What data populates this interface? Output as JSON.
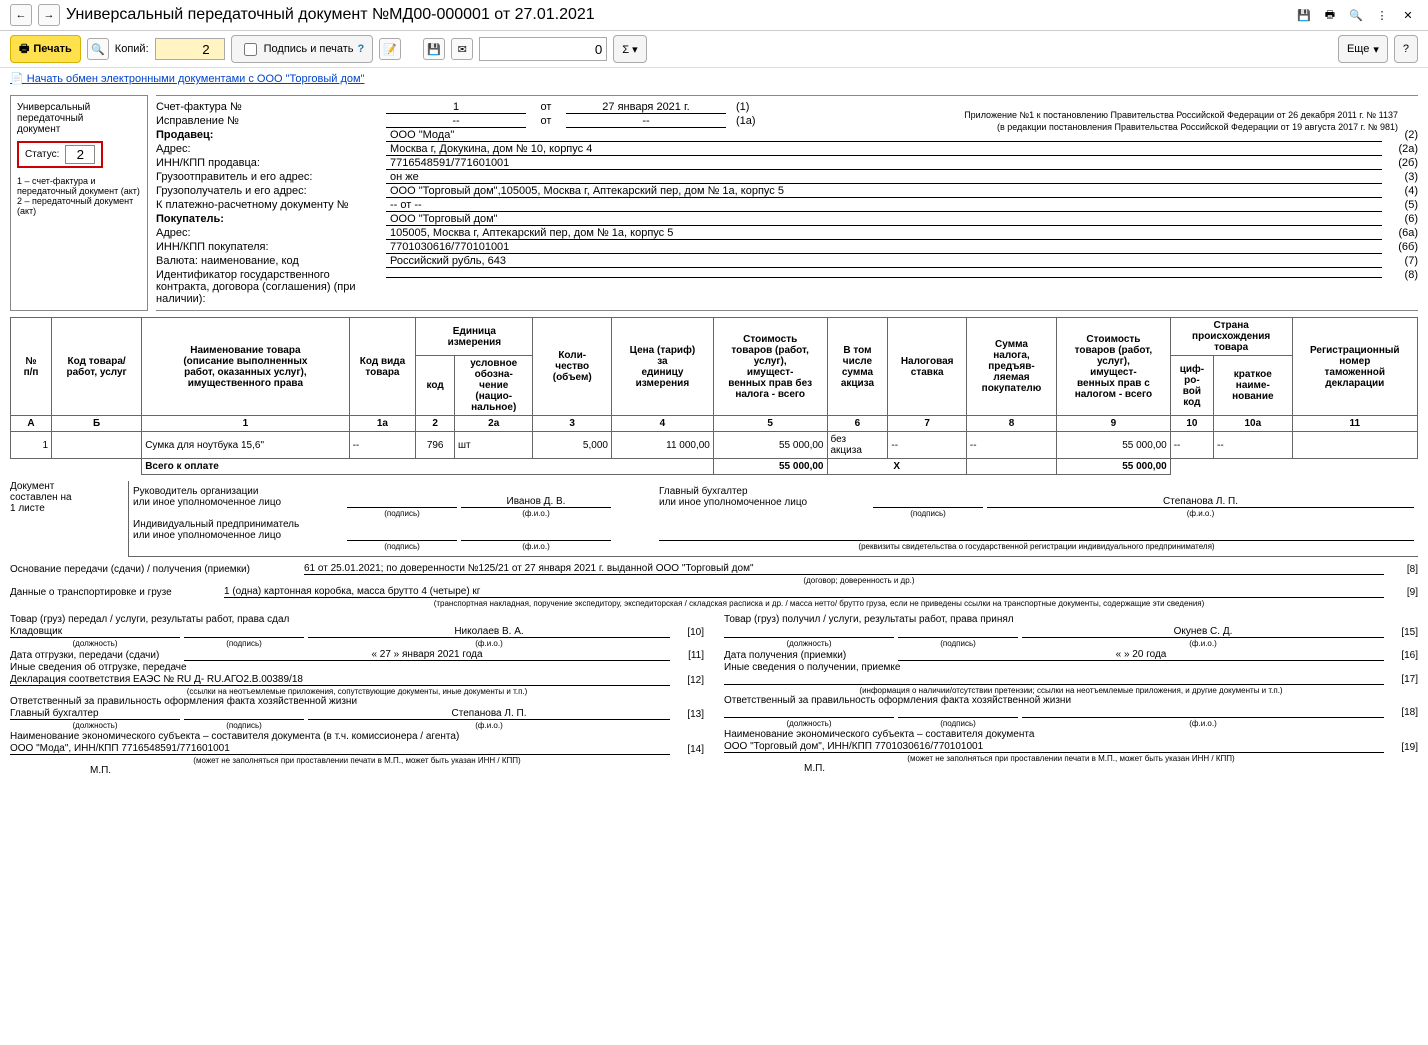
{
  "chrome": {
    "title": "Универсальный передаточный документ №МД00-000001 от 27.01.2021"
  },
  "toolbar": {
    "print": "Печать",
    "copies_label": "Копий:",
    "copies_value": "2",
    "sign_print": "Подпись и печать",
    "number_field": "0",
    "more": "Еще"
  },
  "link": "Начать обмен электронными документами с ООО \"Торговый дом\"",
  "sidebar": {
    "title1": "Универсальный",
    "title2": "передаточный",
    "title3": "документ",
    "status_label": "Статус:",
    "status_value": "2",
    "note": "1 – счет-фактура и передаточный документ (акт)\n2 – передаточный документ (акт)"
  },
  "legal": {
    "l1": "Приложение №1 к постановлению Правительства Российской Федерации от 26 декабря 2011 г. № 1137",
    "l2": "(в редакции постановления Правительства Российской Федерации от 19 августа 2017 г. № 981)"
  },
  "header": {
    "invoice_no_label": "Счет-фактура №",
    "invoice_no": "1",
    "from_label": "от",
    "invoice_date": "27 января 2021 г.",
    "invoice_idx": "(1)",
    "corr_label": "Исправление №",
    "corr_no": "--",
    "corr_date": "--",
    "corr_idx": "(1а)",
    "rows": [
      {
        "label": "Продавец:",
        "val": "ООО \"Мода\"",
        "idx": "(2)",
        "bold": true
      },
      {
        "label": "Адрес:",
        "val": "Москва г, Докукина, дом № 10, корпус 4",
        "idx": "(2а)"
      },
      {
        "label": "ИНН/КПП продавца:",
        "val": "7716548591/771601001",
        "idx": "(2б)"
      },
      {
        "label": "Грузоотправитель и его адрес:",
        "val": "он же",
        "idx": "(3)"
      },
      {
        "label": "Грузополучатель и его адрес:",
        "val": "ООО \"Торговый дом\",105005, Москва г, Аптекарский пер, дом № 1а, корпус 5",
        "idx": "(4)"
      },
      {
        "label": "К платежно-расчетному документу №",
        "val": "-- от --",
        "idx": "(5)"
      },
      {
        "label": "Покупатель:",
        "val": "ООО \"Торговый дом\"",
        "idx": "(6)",
        "bold": true
      },
      {
        "label": "Адрес:",
        "val": "105005, Москва г, Аптекарский пер, дом № 1а, корпус 5",
        "idx": "(6а)"
      },
      {
        "label": "ИНН/КПП покупателя:",
        "val": "7701030616/770101001",
        "idx": "(6б)"
      },
      {
        "label": "Валюта: наименование, код",
        "val": "Российский рубль, 643",
        "idx": "(7)"
      },
      {
        "label": "Идентификатор государственного контракта, договора (соглашения) (при наличии):",
        "val": "",
        "idx": "(8)"
      }
    ]
  },
  "table": {
    "head": {
      "n": "№\nп/п",
      "code": "Код товара/\nработ, услуг",
      "name": "Наименование товара\n(описание выполненных\nработ, оказанных услуг),\nимущественного права",
      "kind": "Код вида\nтовара",
      "unit": "Единица\nизмерения",
      "unit_code": "код",
      "unit_name": "условное\nобозна-\nчение\n(нацио-\nнальное)",
      "qty": "Коли-\nчество\n(объем)",
      "price": "Цена (тариф)\nза\nединицу\nизмерения",
      "cost_notax": "Стоимость\nтоваров (работ,\nуслуг),\nимущест-\nвенных прав без\nналога - всего",
      "excise": "В том\nчисле\nсумма\nакциза",
      "taxrate": "Налоговая\nставка",
      "taxsum": "Сумма\nналога,\nпредъяв-\nляемая\nпокупателю",
      "cost_tax": "Стоимость\nтоваров (работ,\nуслуг),\nимущест-\nвенных прав с\nналогом - всего",
      "country": "Страна\nпроисхождения\nтовара",
      "country_code": "циф-\nро-\nвой\nкод",
      "country_name": "краткое\nнаиме-\nнование",
      "decl": "Регистрационный\nномер\nтаможенной\nдекларации"
    },
    "col_ids": [
      "А",
      "Б",
      "1",
      "1а",
      "2",
      "2а",
      "3",
      "4",
      "5",
      "6",
      "7",
      "8",
      "9",
      "10",
      "10а",
      "11"
    ],
    "rows": [
      {
        "n": "1",
        "code": "",
        "name": "Сумка для ноутбука 15,6\"",
        "kind": "--",
        "unit_code": "796",
        "unit_name": "шт",
        "qty": "5,000",
        "price": "11 000,00",
        "cost_notax": "55 000,00",
        "excise": "без\nакциза",
        "taxrate": "--",
        "taxsum": "--",
        "cost_tax": "55 000,00",
        "cc": "--",
        "cn": "--",
        "decl": ""
      }
    ],
    "total_label": "Всего к оплате",
    "total_notax": "55 000,00",
    "total_x": "Х",
    "total_tax": "55 000,00"
  },
  "footer": {
    "doc_on": "Документ\nсоставлен на\n1 листе",
    "mgr_label": "Руководитель организации\nили иное уполномоченное лицо",
    "mgr_name": "Иванов Д. В.",
    "acc_label": "Главный бухгалтер\nили иное уполномоченное лицо",
    "acc_name": "Степанова Л. П.",
    "ip_label": "Индивидуальный предприниматель\nили иное уполномоченное лицо",
    "sign_cap": "(подпись)",
    "fio_cap": "(ф.и.о.)",
    "ip_cap": "(реквизиты свидетельства о государственной регистрации индивидуального предпринимателя)",
    "basis_label": "Основание передачи (сдачи) / получения (приемки)",
    "basis_val": "61 от 25.01.2021; по доверенности №125/21 от 27 января 2021 г. выданной ООО \"Торговый дом\"",
    "basis_cap": "(договор; доверенность и др.)",
    "basis_idx": "[8]",
    "trans_label": "Данные о транспортировке и грузе",
    "trans_val": "1 (одна) картонная коробка, масса брутто 4 (четыре) кг",
    "trans_cap": "(транспортная накладная, поручение экспедитору, экспедиторская / складская расписка и др. / масса нетто/ брутто груза, если не приведены ссылки на транспортные документы, содержащие эти сведения)",
    "trans_idx": "[9]",
    "left": {
      "title": "Товар (груз) передал / услуги, результаты работ, права сдал",
      "pos": "Кладовщик",
      "name": "Николаев В. А.",
      "idx1": "[10]",
      "date_label": "Дата отгрузки, передачи (сдачи)",
      "date": "« 27 »   января   2021   года",
      "idx2": "[11]",
      "other_label": "Иные сведения об отгрузке, передаче",
      "other_val": "Декларация соответствия ЕАЭС № RU Д- RU.АГО2.В.00389/18",
      "idx3": "[12]",
      "other_cap": "(ссылки на неотъемлемые приложения, сопутствующие документы, иные документы и т.п.)",
      "resp_label": "Ответственный за правильность оформления факта хозяйственной жизни",
      "resp_pos": "Главный бухгалтер",
      "resp_name": "Степанова Л. П.",
      "idx4": "[13]",
      "econ_label": "Наименование экономического субъекта – составителя документа (в т.ч. комиссионера / агента)",
      "econ_val": "ООО \"Мода\", ИНН/КПП 7716548591/771601001",
      "idx5": "[14]",
      "econ_cap": "(может не заполняться при проставлении печати в М.П., может быть указан ИНН / КПП)",
      "mp": "М.П."
    },
    "right": {
      "title": "Товар (груз) получил / услуги, результаты работ, права принял",
      "pos": "",
      "name": "Окунев С. Д.",
      "idx1": "[15]",
      "date_label": "Дата получения (приемки)",
      "date": "«      »                    20      года",
      "idx2": "[16]",
      "other_label": "Иные сведения о получении, приемке",
      "other_val": "",
      "idx3": "[17]",
      "other_cap": "(информация о наличии/отсутствии претензии; ссылки на неотъемлемые приложения, и другие документы и т.п.)",
      "resp_label": "Ответственный за правильность оформления факта хозяйственной жизни",
      "resp_pos": "",
      "resp_name": "",
      "idx4": "[18]",
      "econ_label": "Наименование экономического субъекта – составителя документа",
      "econ_val": "ООО \"Торговый дом\", ИНН/КПП 7701030616/770101001",
      "idx5": "[19]",
      "econ_cap": "(может не заполняться при проставлении печати в М.П., может быть указан ИНН / КПП)",
      "mp": "М.П."
    },
    "pos_cap": "(должность)"
  }
}
